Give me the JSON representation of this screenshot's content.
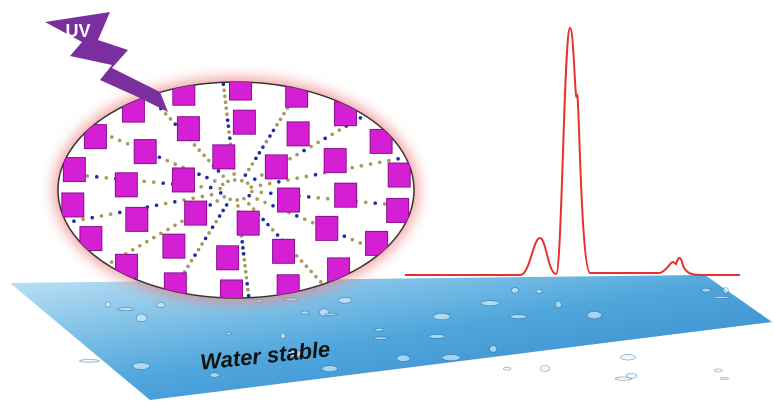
{
  "labels": {
    "uv": "UV",
    "water": "Water stable"
  }
}
